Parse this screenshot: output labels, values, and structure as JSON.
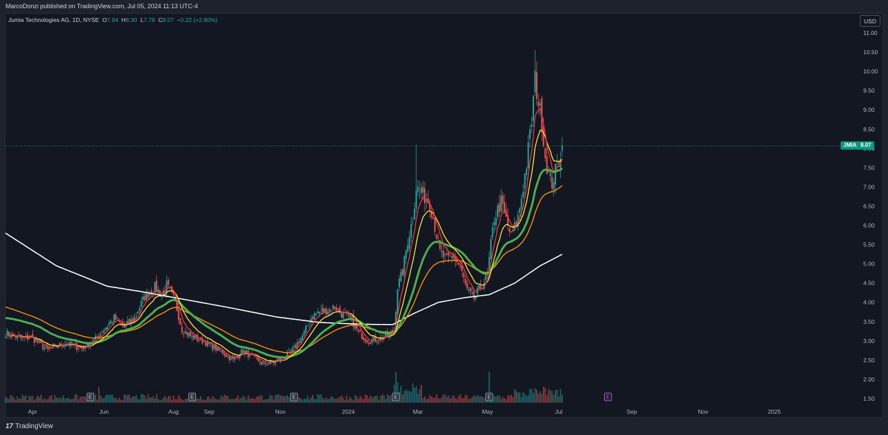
{
  "header": {
    "publish_line": "MarcoDonzi published on TradingView.com, Jul 05, 2024 11:13 UTC-4"
  },
  "legend": {
    "symbol": "Jumia Technologies AG, 1D, NYSE",
    "open_label": "O",
    "open": "7.94",
    "high_label": "H",
    "high": "8.30",
    "low_label": "L",
    "low": "7.78",
    "close_label": "C",
    "close": "8.07",
    "change": "+0.22 (+2.80%)"
  },
  "currency_button": "USD",
  "last_price": {
    "symbol": "JMIA",
    "value": "8.07"
  },
  "footer": {
    "brand": "TradingView",
    "logo_glyph": "17"
  },
  "colors": {
    "up": "#26a69a",
    "down": "#ef5350",
    "ema_fast": "#f23645",
    "ema_mid": "#ffeb3b",
    "ema_slow": "#4caf50",
    "ema_orange": "#ff9800",
    "ma_white": "#ffffff",
    "earnings": "#b36ad0"
  },
  "chart_data": {
    "type": "line",
    "y_ticks": [
      "11.00",
      "10.50",
      "10.00",
      "9.50",
      "9.00",
      "8.50",
      "8.00",
      "7.50",
      "7.00",
      "6.50",
      "6.00",
      "5.50",
      "5.00",
      "4.50",
      "4.00",
      "3.50",
      "3.00",
      "2.50",
      "2.00",
      "1.50"
    ],
    "ylim": [
      1.35,
      11.15
    ],
    "x_labels": [
      {
        "label": "Apr",
        "i": 16
      },
      {
        "label": "Jun",
        "i": 58
      },
      {
        "label": "Aug",
        "i": 99
      },
      {
        "label": "Sep",
        "i": 120
      },
      {
        "label": "Nov",
        "i": 162
      },
      {
        "label": "2024",
        "i": 202
      },
      {
        "label": "Mar",
        "i": 243
      },
      {
        "label": "May",
        "i": 284
      },
      {
        "label": "Jul",
        "i": 326
      },
      {
        "label": "Sep",
        "i": 369
      },
      {
        "label": "Nov",
        "i": 411
      },
      {
        "label": "2025",
        "i": 453
      }
    ],
    "x_count": 490,
    "last_index": 328,
    "earnings_markers": [
      {
        "i": 50,
        "label": "E",
        "upcoming": false
      },
      {
        "i": 110,
        "label": "E",
        "upcoming": false
      },
      {
        "i": 170,
        "label": "E",
        "upcoming": false
      },
      {
        "i": 230,
        "label": "E",
        "upcoming": false
      },
      {
        "i": 285,
        "label": "E",
        "upcoming": false
      },
      {
        "i": 355,
        "label": "E",
        "upcoming": true
      }
    ],
    "close_anchors": [
      [
        0,
        3.2
      ],
      [
        10,
        3.05
      ],
      [
        15,
        3.1
      ],
      [
        25,
        2.75
      ],
      [
        35,
        2.95
      ],
      [
        45,
        2.8
      ],
      [
        52,
        3.0
      ],
      [
        58,
        3.3
      ],
      [
        64,
        3.6
      ],
      [
        70,
        3.35
      ],
      [
        76,
        3.6
      ],
      [
        82,
        4.15
      ],
      [
        88,
        4.4
      ],
      [
        92,
        4.2
      ],
      [
        95,
        4.45
      ],
      [
        100,
        4.0
      ],
      [
        104,
        3.3
      ],
      [
        110,
        3.1
      ],
      [
        116,
        3.0
      ],
      [
        122,
        2.85
      ],
      [
        128,
        2.7
      ],
      [
        134,
        2.5
      ],
      [
        140,
        2.75
      ],
      [
        146,
        2.55
      ],
      [
        152,
        2.4
      ],
      [
        158,
        2.45
      ],
      [
        164,
        2.55
      ],
      [
        170,
        2.8
      ],
      [
        176,
        3.2
      ],
      [
        180,
        3.6
      ],
      [
        184,
        3.75
      ],
      [
        190,
        3.8
      ],
      [
        194,
        3.9
      ],
      [
        198,
        3.7
      ],
      [
        204,
        3.55
      ],
      [
        208,
        3.2
      ],
      [
        214,
        3.0
      ],
      [
        220,
        3.05
      ],
      [
        226,
        3.15
      ],
      [
        229,
        3.3
      ],
      [
        231,
        4.4
      ],
      [
        234,
        4.8
      ],
      [
        237,
        5.6
      ],
      [
        240,
        6.2
      ],
      [
        242,
        7.0
      ],
      [
        246,
        6.8
      ],
      [
        250,
        6.6
      ],
      [
        252,
        6.2
      ],
      [
        256,
        5.3
      ],
      [
        260,
        5.1
      ],
      [
        264,
        5.2
      ],
      [
        268,
        4.9
      ],
      [
        272,
        4.3
      ],
      [
        276,
        4.1
      ],
      [
        280,
        4.4
      ],
      [
        284,
        4.7
      ],
      [
        286,
        5.5
      ],
      [
        288,
        6.2
      ],
      [
        292,
        6.6
      ],
      [
        296,
        6.0
      ],
      [
        298,
        5.7
      ],
      [
        302,
        6.2
      ],
      [
        305,
        7.0
      ],
      [
        307,
        7.6
      ],
      [
        310,
        8.7
      ],
      [
        312,
        9.8
      ],
      [
        314,
        9.2
      ],
      [
        316,
        8.7
      ],
      [
        318,
        7.8
      ],
      [
        320,
        7.3
      ],
      [
        322,
        7.1
      ],
      [
        324,
        7.4
      ],
      [
        326,
        7.75
      ],
      [
        328,
        8.07
      ]
    ],
    "ma200_anchors": [
      [
        0,
        5.8
      ],
      [
        30,
        4.95
      ],
      [
        60,
        4.42
      ],
      [
        80,
        4.28
      ],
      [
        100,
        4.12
      ],
      [
        130,
        3.88
      ],
      [
        160,
        3.62
      ],
      [
        185,
        3.48
      ],
      [
        200,
        3.45
      ],
      [
        215,
        3.43
      ],
      [
        228,
        3.42
      ],
      [
        240,
        3.7
      ],
      [
        255,
        4.0
      ],
      [
        270,
        4.12
      ],
      [
        285,
        4.2
      ],
      [
        300,
        4.5
      ],
      [
        315,
        4.95
      ],
      [
        328,
        5.25
      ]
    ],
    "volume_max": 1.0
  }
}
